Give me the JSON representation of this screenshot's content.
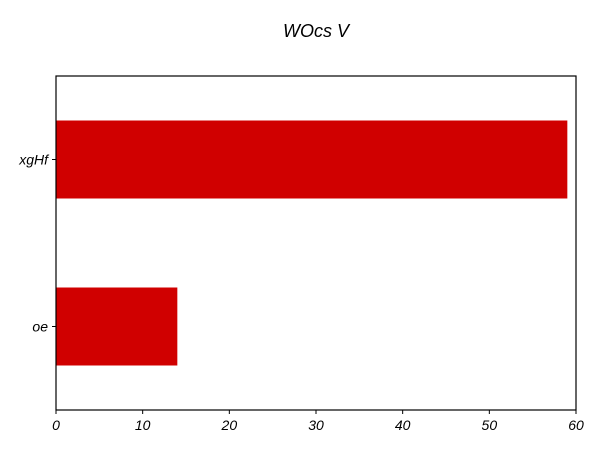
{
  "chart_data": {
    "type": "bar",
    "orientation": "horizontal",
    "title": "WOcs V",
    "xlabel": "",
    "ylabel": "",
    "categories": [
      "xgHf",
      "oe"
    ],
    "values": [
      59,
      14
    ],
    "xlim": [
      0,
      60
    ],
    "xticks": [
      0,
      10,
      20,
      30,
      40,
      50,
      60
    ],
    "bar_color": "#d00000",
    "grid": false,
    "legend": "none"
  }
}
